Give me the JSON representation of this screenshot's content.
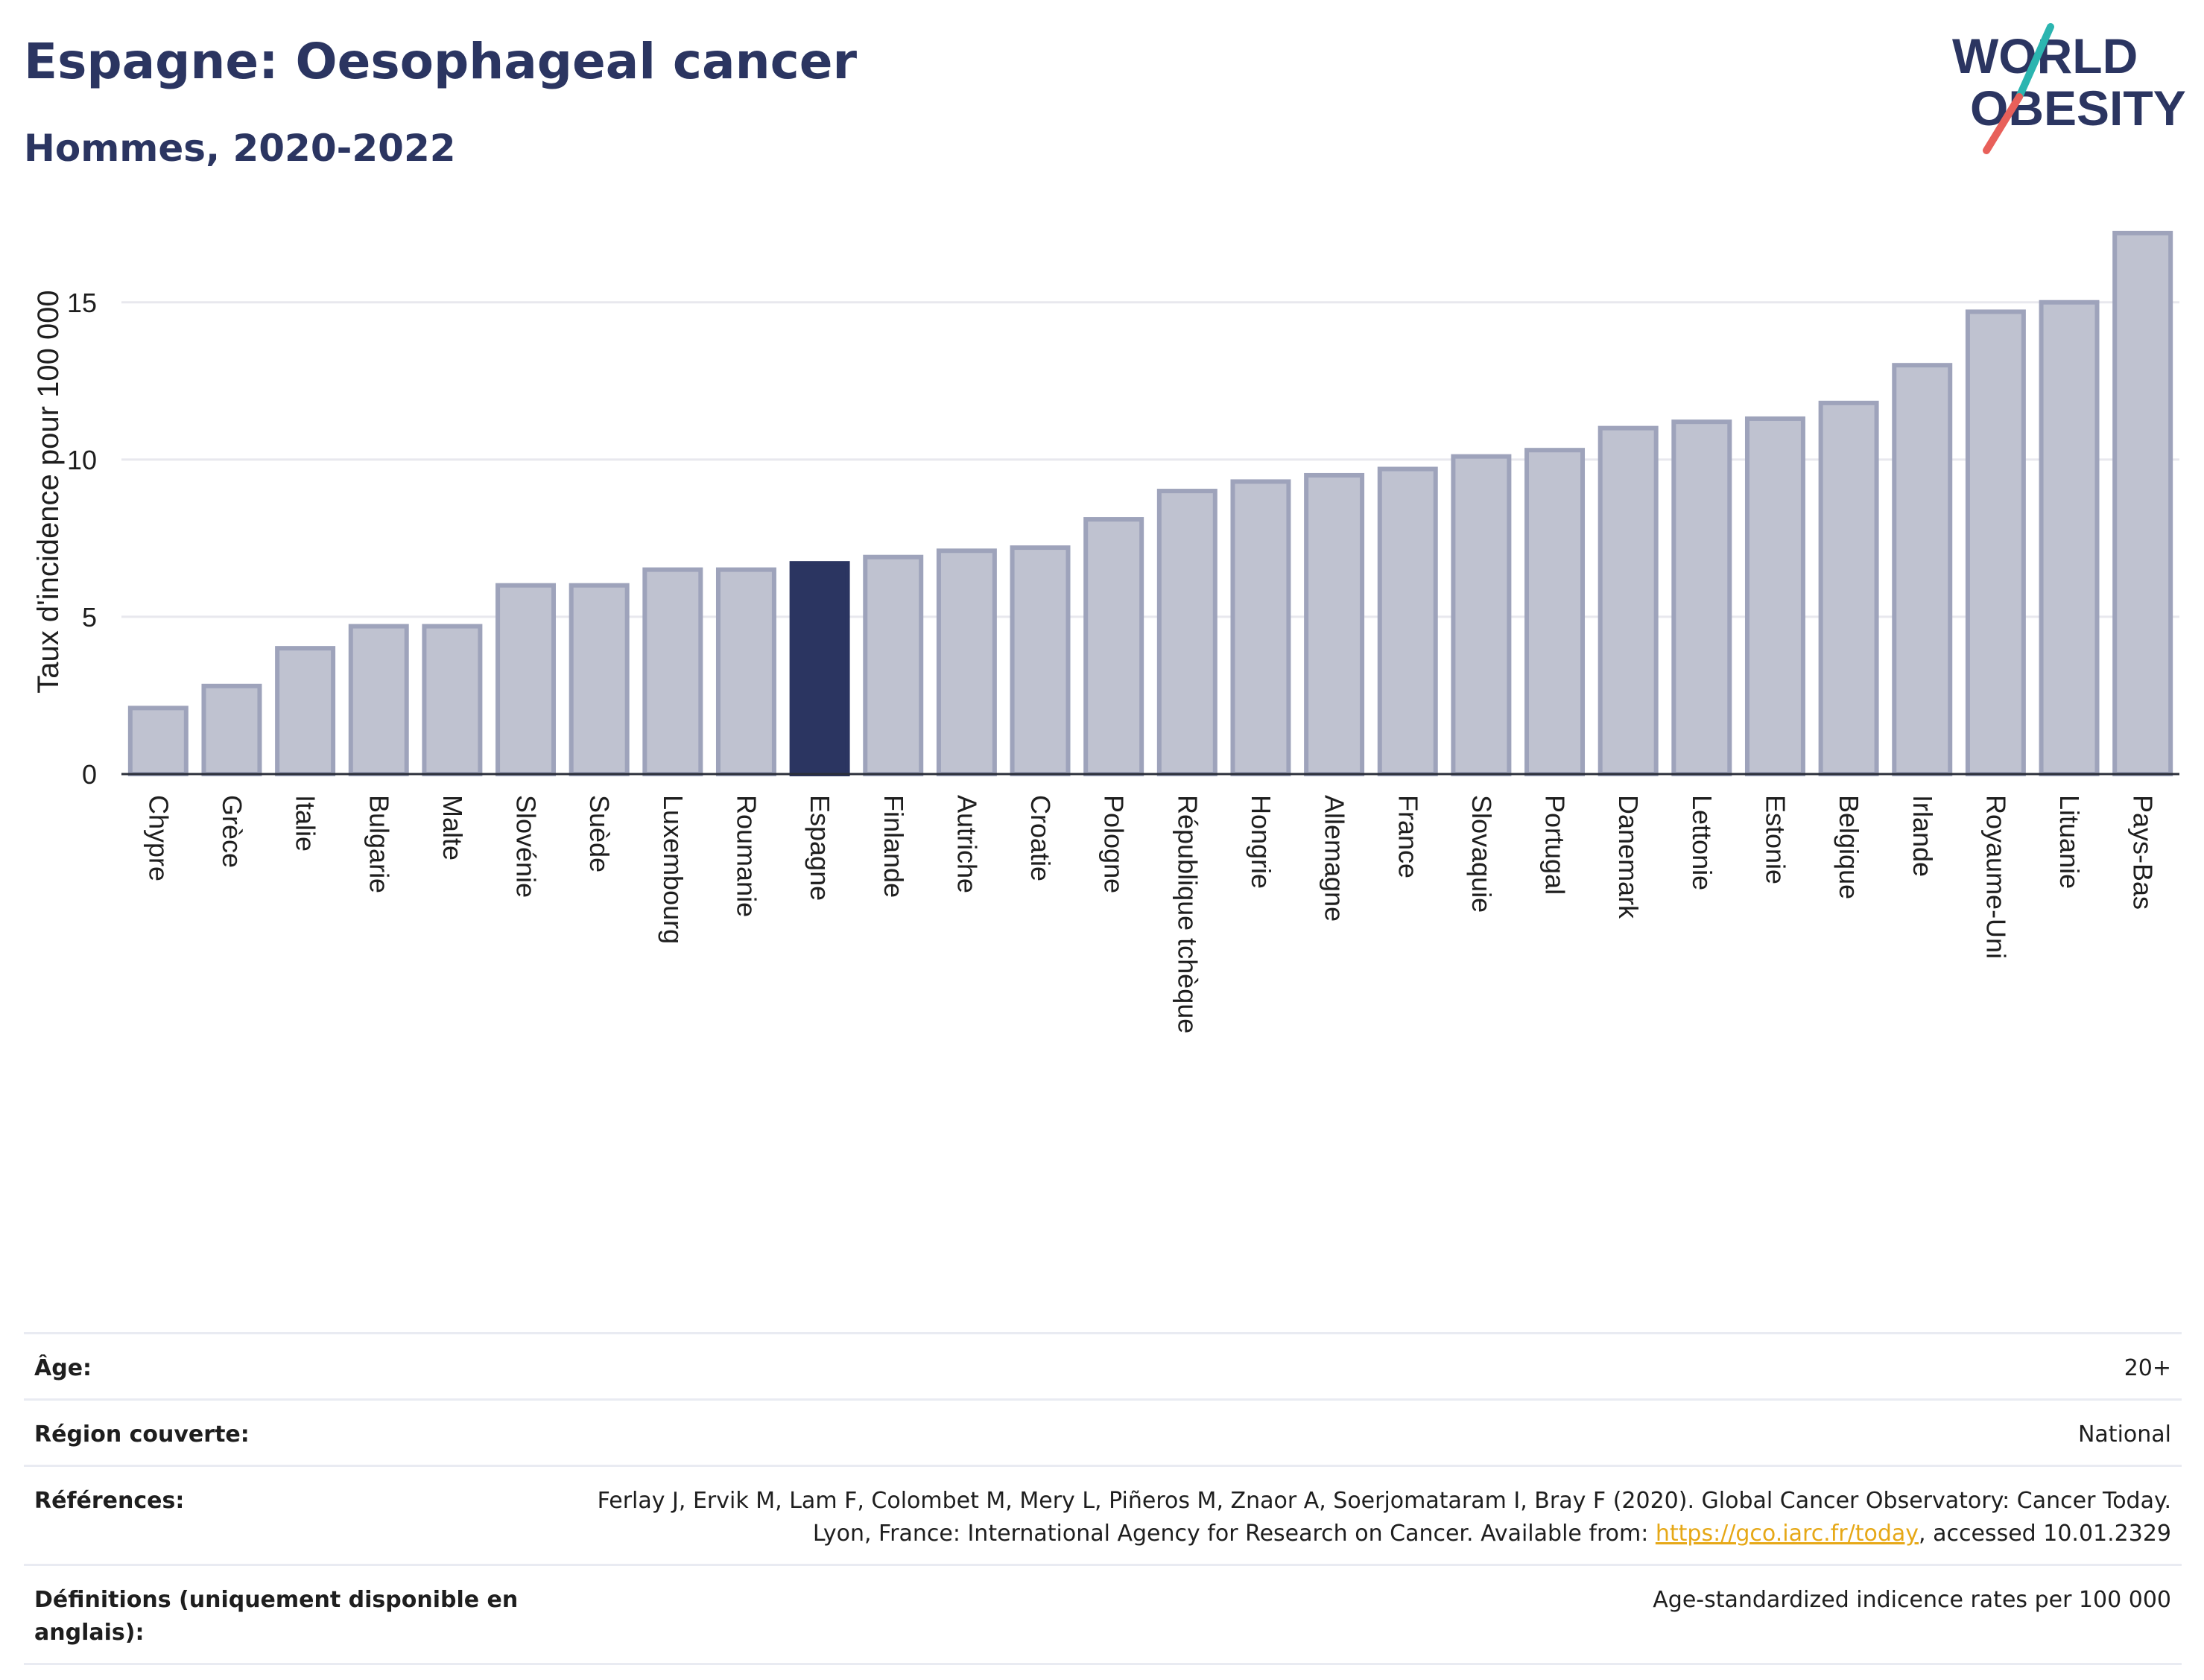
{
  "header": {
    "title": "Espagne: Oesophageal cancer",
    "subtitle": "Hommes, 2020-2022"
  },
  "logo": {
    "line1": "WORLD",
    "line2": "OBESITY",
    "icon": "world-obesity-logo"
  },
  "colors": {
    "bar": "#bfc2d0",
    "bar_edge": "#9ea3bb",
    "highlight": "#2b3561",
    "grid": "#e8e8ee",
    "text": "#2b3561",
    "link": "#e6a817"
  },
  "chart_data": {
    "type": "bar",
    "title": "Espagne: Oesophageal cancer",
    "subtitle": "Hommes, 2020-2022",
    "ylabel": "Taux d'incidence pour 100 000",
    "xlabel": "",
    "ylim": [
      0,
      17.6
    ],
    "yticks": [
      0,
      5,
      10,
      15
    ],
    "ytick_labels": [
      "0",
      "5",
      "10",
      "15"
    ],
    "grid": true,
    "legend": "none",
    "highlight": "Espagne",
    "categories": [
      "Chypre",
      "Grèce",
      "Italie",
      "Bulgarie",
      "Malte",
      "Slovénie",
      "Suède",
      "Luxembourg",
      "Roumanie",
      "Espagne",
      "Finlande",
      "Autriche",
      "Croatie",
      "Pologne",
      "République tchèque",
      "Hongrie",
      "Allemagne",
      "France",
      "Slovaquie",
      "Portugal",
      "Danemark",
      "Lettonie",
      "Estonie",
      "Belgique",
      "Irlande",
      "Royaume-Uni",
      "Lituanie",
      "Pays-Bas"
    ],
    "values": [
      2.1,
      2.8,
      4.0,
      4.7,
      4.7,
      6.0,
      6.0,
      6.5,
      6.5,
      6.7,
      6.9,
      7.1,
      7.2,
      8.1,
      9.0,
      9.3,
      9.5,
      9.7,
      10.1,
      10.3,
      11.0,
      11.2,
      11.3,
      11.8,
      13.0,
      14.7,
      15.0,
      17.2
    ]
  },
  "meta": {
    "age_label": "Âge:",
    "age_value": "20+",
    "region_label": "Région couverte:",
    "region_value": "National",
    "ref_label": "Références:",
    "ref_text_before": "Ferlay J, Ervik M, Lam F, Colombet M, Mery L, Piñeros M, Znaor A, Soerjomataram I, Bray F (2020). Global Cancer Observatory: Cancer Today. Lyon, France: International Agency for Research on Cancer. Available from: ",
    "ref_link": "https://gco.iarc.fr/today",
    "ref_text_after": ", accessed 10.01.2329",
    "def_label": "Définitions (uniquement disponible en anglais):",
    "def_value": "Age-standardized indicence rates per 100 000"
  }
}
